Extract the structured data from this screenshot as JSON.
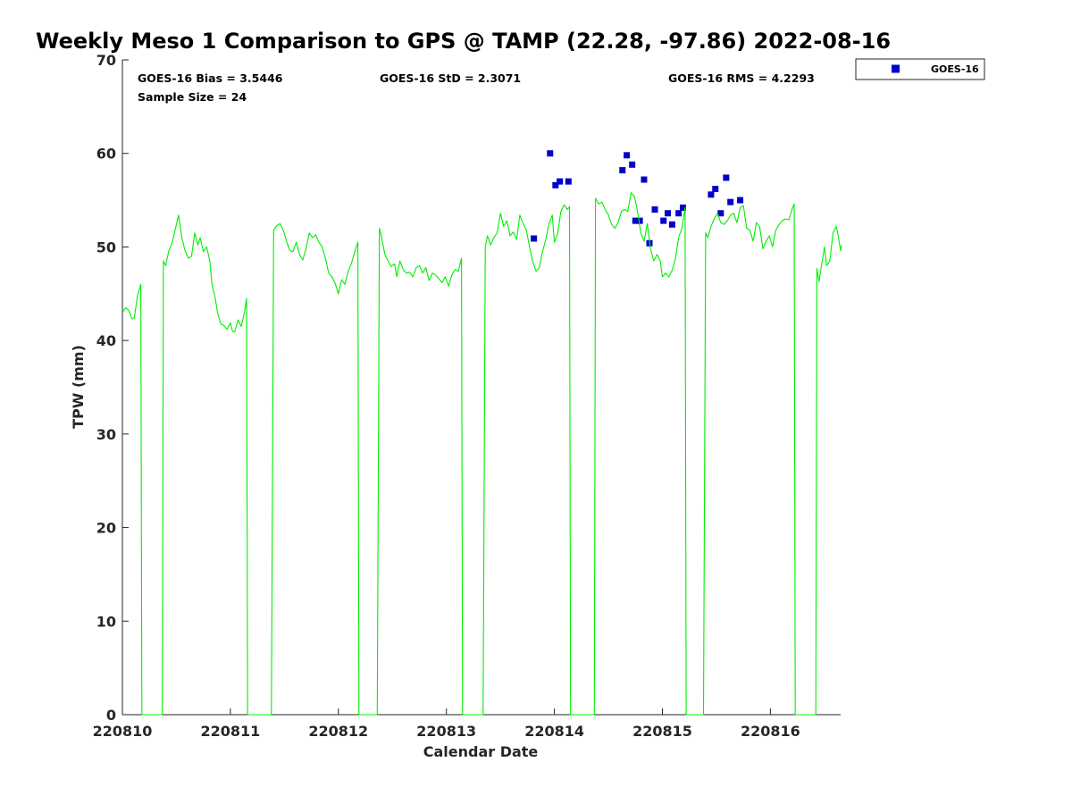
{
  "chart_data": {
    "type": "scatter",
    "title": "Weekly Meso 1 Comparison to GPS @ TAMP (22.28, -97.86) 2022-08-16",
    "xlabel": "Calendar Date",
    "ylabel": "TPW (mm)",
    "xlim": [
      0,
      6.65
    ],
    "ylim": [
      0,
      70
    ],
    "x_ticks": [
      {
        "value": 0,
        "label": "220810"
      },
      {
        "value": 1,
        "label": "220811"
      },
      {
        "value": 2,
        "label": "220812"
      },
      {
        "value": 3,
        "label": "220813"
      },
      {
        "value": 4,
        "label": "220814"
      },
      {
        "value": 5,
        "label": "220815"
      },
      {
        "value": 6,
        "label": "220816"
      }
    ],
    "y_ticks": [
      0,
      10,
      20,
      30,
      40,
      50,
      60,
      70
    ],
    "grid": false,
    "legend_position": "top-right",
    "stats": {
      "bias": "GOES-16 Bias = 3.5446",
      "std": "GOES-16 StD = 2.3071",
      "rms": "GOES-16 RMS = 4.2293",
      "sample": "Sample Size = 24"
    },
    "series": [
      {
        "name": "GOES-16",
        "kind": "scatter",
        "color": "#0000cc",
        "points": [
          [
            3.81,
            50.9
          ],
          [
            3.96,
            60.0
          ],
          [
            4.01,
            56.6
          ],
          [
            4.05,
            57.0
          ],
          [
            4.13,
            57.0
          ],
          [
            4.63,
            58.2
          ],
          [
            4.67,
            59.8
          ],
          [
            4.72,
            58.8
          ],
          [
            4.75,
            52.8
          ],
          [
            4.79,
            52.8
          ],
          [
            4.83,
            57.2
          ],
          [
            4.88,
            50.4
          ],
          [
            4.93,
            54.0
          ],
          [
            5.01,
            52.8
          ],
          [
            5.05,
            53.6
          ],
          [
            5.09,
            52.4
          ],
          [
            5.15,
            53.6
          ],
          [
            5.19,
            54.2
          ],
          [
            5.45,
            55.6
          ],
          [
            5.49,
            56.2
          ],
          [
            5.54,
            53.6
          ],
          [
            5.59,
            57.4
          ],
          [
            5.63,
            54.8
          ],
          [
            5.72,
            55.0
          ]
        ]
      },
      {
        "kind": "line",
        "color": "#00ee00",
        "points": [
          [
            0.0,
            43.0
          ],
          [
            0.03,
            43.5
          ],
          [
            0.06,
            43.2
          ],
          [
            0.09,
            42.3
          ],
          [
            0.11,
            42.4
          ],
          [
            0.14,
            44.8
          ],
          [
            0.17,
            46.0
          ],
          [
            0.18,
            0.0
          ],
          [
            0.37,
            0.0
          ],
          [
            0.38,
            48.5
          ],
          [
            0.4,
            48.0
          ],
          [
            0.43,
            49.6
          ],
          [
            0.46,
            50.4
          ],
          [
            0.49,
            51.9
          ],
          [
            0.52,
            53.4
          ],
          [
            0.55,
            51.0
          ],
          [
            0.58,
            49.6
          ],
          [
            0.61,
            48.8
          ],
          [
            0.64,
            49.0
          ],
          [
            0.67,
            51.5
          ],
          [
            0.7,
            50.2
          ],
          [
            0.72,
            51.0
          ],
          [
            0.75,
            49.5
          ],
          [
            0.78,
            50.0
          ],
          [
            0.81,
            48.5
          ],
          [
            0.83,
            46.0
          ],
          [
            0.86,
            44.5
          ],
          [
            0.88,
            43.0
          ],
          [
            0.91,
            41.8
          ],
          [
            0.94,
            41.6
          ],
          [
            0.97,
            41.2
          ],
          [
            1.0,
            41.9
          ],
          [
            1.02,
            41.0
          ],
          [
            1.04,
            40.9
          ],
          [
            1.07,
            42.2
          ],
          [
            1.1,
            41.5
          ],
          [
            1.13,
            43.0
          ],
          [
            1.15,
            44.5
          ],
          [
            1.16,
            0.0
          ],
          [
            1.38,
            0.0
          ],
          [
            1.4,
            51.8
          ],
          [
            1.43,
            52.3
          ],
          [
            1.46,
            52.5
          ],
          [
            1.49,
            51.8
          ],
          [
            1.52,
            50.6
          ],
          [
            1.55,
            49.6
          ],
          [
            1.58,
            49.5
          ],
          [
            1.61,
            50.5
          ],
          [
            1.64,
            49.2
          ],
          [
            1.67,
            48.6
          ],
          [
            1.7,
            49.8
          ],
          [
            1.73,
            51.5
          ],
          [
            1.76,
            51.0
          ],
          [
            1.79,
            51.3
          ],
          [
            1.82,
            50.5
          ],
          [
            1.85,
            50.0
          ],
          [
            1.88,
            48.8
          ],
          [
            1.91,
            47.2
          ],
          [
            1.94,
            46.8
          ],
          [
            1.97,
            46.1
          ],
          [
            2.0,
            45.0
          ],
          [
            2.03,
            46.5
          ],
          [
            2.06,
            46.0
          ],
          [
            2.09,
            47.4
          ],
          [
            2.12,
            48.2
          ],
          [
            2.15,
            49.4
          ],
          [
            2.18,
            50.5
          ],
          [
            2.19,
            0.0
          ],
          [
            2.36,
            0.0
          ],
          [
            2.38,
            52.0
          ],
          [
            2.4,
            51.0
          ],
          [
            2.43,
            49.2
          ],
          [
            2.46,
            48.5
          ],
          [
            2.49,
            47.9
          ],
          [
            2.52,
            48.2
          ],
          [
            2.54,
            46.8
          ],
          [
            2.57,
            48.5
          ],
          [
            2.6,
            47.6
          ],
          [
            2.63,
            47.2
          ],
          [
            2.66,
            47.3
          ],
          [
            2.69,
            46.8
          ],
          [
            2.72,
            47.8
          ],
          [
            2.75,
            48.0
          ],
          [
            2.78,
            47.2
          ],
          [
            2.81,
            47.8
          ],
          [
            2.84,
            46.4
          ],
          [
            2.87,
            47.2
          ],
          [
            2.9,
            47.0
          ],
          [
            2.93,
            46.6
          ],
          [
            2.96,
            46.2
          ],
          [
            2.99,
            46.8
          ],
          [
            3.02,
            45.8
          ],
          [
            3.05,
            47.0
          ],
          [
            3.08,
            47.6
          ],
          [
            3.11,
            47.4
          ],
          [
            3.14,
            48.8
          ],
          [
            3.15,
            0.0
          ],
          [
            3.34,
            0.0
          ],
          [
            3.36,
            50.0
          ],
          [
            3.38,
            51.2
          ],
          [
            3.41,
            50.2
          ],
          [
            3.44,
            51.0
          ],
          [
            3.47,
            51.5
          ],
          [
            3.5,
            53.6
          ],
          [
            3.53,
            52.2
          ],
          [
            3.56,
            52.8
          ],
          [
            3.59,
            51.2
          ],
          [
            3.62,
            51.6
          ],
          [
            3.65,
            50.8
          ],
          [
            3.68,
            53.4
          ],
          [
            3.71,
            52.5
          ],
          [
            3.74,
            51.8
          ],
          [
            3.77,
            50.0
          ],
          [
            3.8,
            48.4
          ],
          [
            3.83,
            47.4
          ],
          [
            3.86,
            47.8
          ],
          [
            3.89,
            49.5
          ],
          [
            3.92,
            50.8
          ],
          [
            3.95,
            52.5
          ],
          [
            3.98,
            53.4
          ],
          [
            4.0,
            50.5
          ],
          [
            4.03,
            51.4
          ],
          [
            4.06,
            53.8
          ],
          [
            4.09,
            54.5
          ],
          [
            4.12,
            54.0
          ],
          [
            4.14,
            54.3
          ],
          [
            4.15,
            0.0
          ],
          [
            4.37,
            0.0
          ],
          [
            4.38,
            55.2
          ],
          [
            4.41,
            54.6
          ],
          [
            4.44,
            54.8
          ],
          [
            4.47,
            54.0
          ],
          [
            4.5,
            53.4
          ],
          [
            4.53,
            52.4
          ],
          [
            4.56,
            52.0
          ],
          [
            4.59,
            52.6
          ],
          [
            4.62,
            53.8
          ],
          [
            4.65,
            54.0
          ],
          [
            4.68,
            53.8
          ],
          [
            4.71,
            55.8
          ],
          [
            4.74,
            55.4
          ],
          [
            4.77,
            53.8
          ],
          [
            4.8,
            51.5
          ],
          [
            4.83,
            50.6
          ],
          [
            4.86,
            52.5
          ],
          [
            4.89,
            49.8
          ],
          [
            4.92,
            48.5
          ],
          [
            4.95,
            49.2
          ],
          [
            4.98,
            48.5
          ],
          [
            5.0,
            46.8
          ],
          [
            5.03,
            47.2
          ],
          [
            5.06,
            46.8
          ],
          [
            5.09,
            47.5
          ],
          [
            5.12,
            48.7
          ],
          [
            5.15,
            51.0
          ],
          [
            5.18,
            52.0
          ],
          [
            5.21,
            54.2
          ],
          [
            5.22,
            0.0
          ],
          [
            5.38,
            0.0
          ],
          [
            5.4,
            51.5
          ],
          [
            5.42,
            51.0
          ],
          [
            5.45,
            52.2
          ],
          [
            5.48,
            53.0
          ],
          [
            5.51,
            53.6
          ],
          [
            5.54,
            52.6
          ],
          [
            5.57,
            52.4
          ],
          [
            5.6,
            52.8
          ],
          [
            5.63,
            53.4
          ],
          [
            5.66,
            53.6
          ],
          [
            5.69,
            52.6
          ],
          [
            5.72,
            54.2
          ],
          [
            5.75,
            54.4
          ],
          [
            5.78,
            52.0
          ],
          [
            5.81,
            51.8
          ],
          [
            5.84,
            50.6
          ],
          [
            5.87,
            52.6
          ],
          [
            5.9,
            52.2
          ],
          [
            5.93,
            49.8
          ],
          [
            5.96,
            50.6
          ],
          [
            5.99,
            51.2
          ],
          [
            6.02,
            50.0
          ],
          [
            6.05,
            51.8
          ],
          [
            6.08,
            52.4
          ],
          [
            6.11,
            52.8
          ],
          [
            6.14,
            53.0
          ],
          [
            6.17,
            52.9
          ],
          [
            6.2,
            54.0
          ],
          [
            6.22,
            54.6
          ],
          [
            6.23,
            0.0
          ],
          [
            6.42,
            0.0
          ],
          [
            6.43,
            47.7
          ],
          [
            6.45,
            46.3
          ],
          [
            6.48,
            48.5
          ],
          [
            6.5,
            50.0
          ],
          [
            6.52,
            48.0
          ],
          [
            6.55,
            48.5
          ],
          [
            6.58,
            51.5
          ],
          [
            6.61,
            52.2
          ],
          [
            6.63,
            51.0
          ],
          [
            6.65,
            49.6
          ],
          [
            6.66,
            50.2
          ]
        ]
      }
    ]
  }
}
